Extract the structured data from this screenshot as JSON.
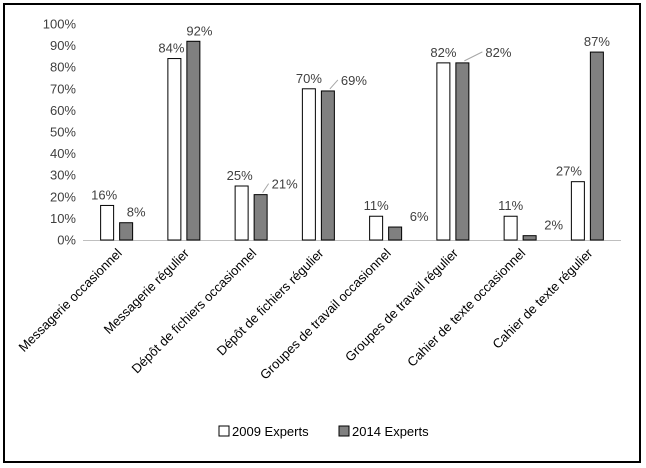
{
  "chart_data": {
    "type": "bar",
    "title": "",
    "xlabel": "",
    "ylabel": "",
    "ylim": [
      0,
      100
    ],
    "yticks": [
      "0%",
      "10%",
      "20%",
      "30%",
      "40%",
      "50%",
      "60%",
      "70%",
      "80%",
      "90%",
      "100%"
    ],
    "grid": false,
    "legend_position": "bottom",
    "categories": [
      "Messagerie occasionnel",
      "Messagerie régulier",
      "Dépôt de fichiers occasionnel",
      "Dépôt de fichiers régulier",
      "Groupes de travail occasionnel",
      "Groupes de travail régulier",
      "Cahier de texte occasionnel",
      "Cahier de texte régulier"
    ],
    "series": [
      {
        "name": "2009 Experts",
        "color": "#ffffff",
        "values": [
          16,
          84,
          25,
          70,
          11,
          82,
          11,
          27
        ],
        "labels": [
          "16%",
          "84%",
          "25%",
          "70%",
          "11%",
          "82%",
          "11%",
          "27%"
        ]
      },
      {
        "name": "2014 Experts",
        "color": "#808080",
        "values": [
          8,
          92,
          21,
          69,
          6,
          82,
          2,
          87
        ],
        "labels": [
          "8%",
          "92%",
          "21%",
          "69%",
          "6%",
          "82%",
          "2%",
          "87%"
        ]
      }
    ]
  }
}
